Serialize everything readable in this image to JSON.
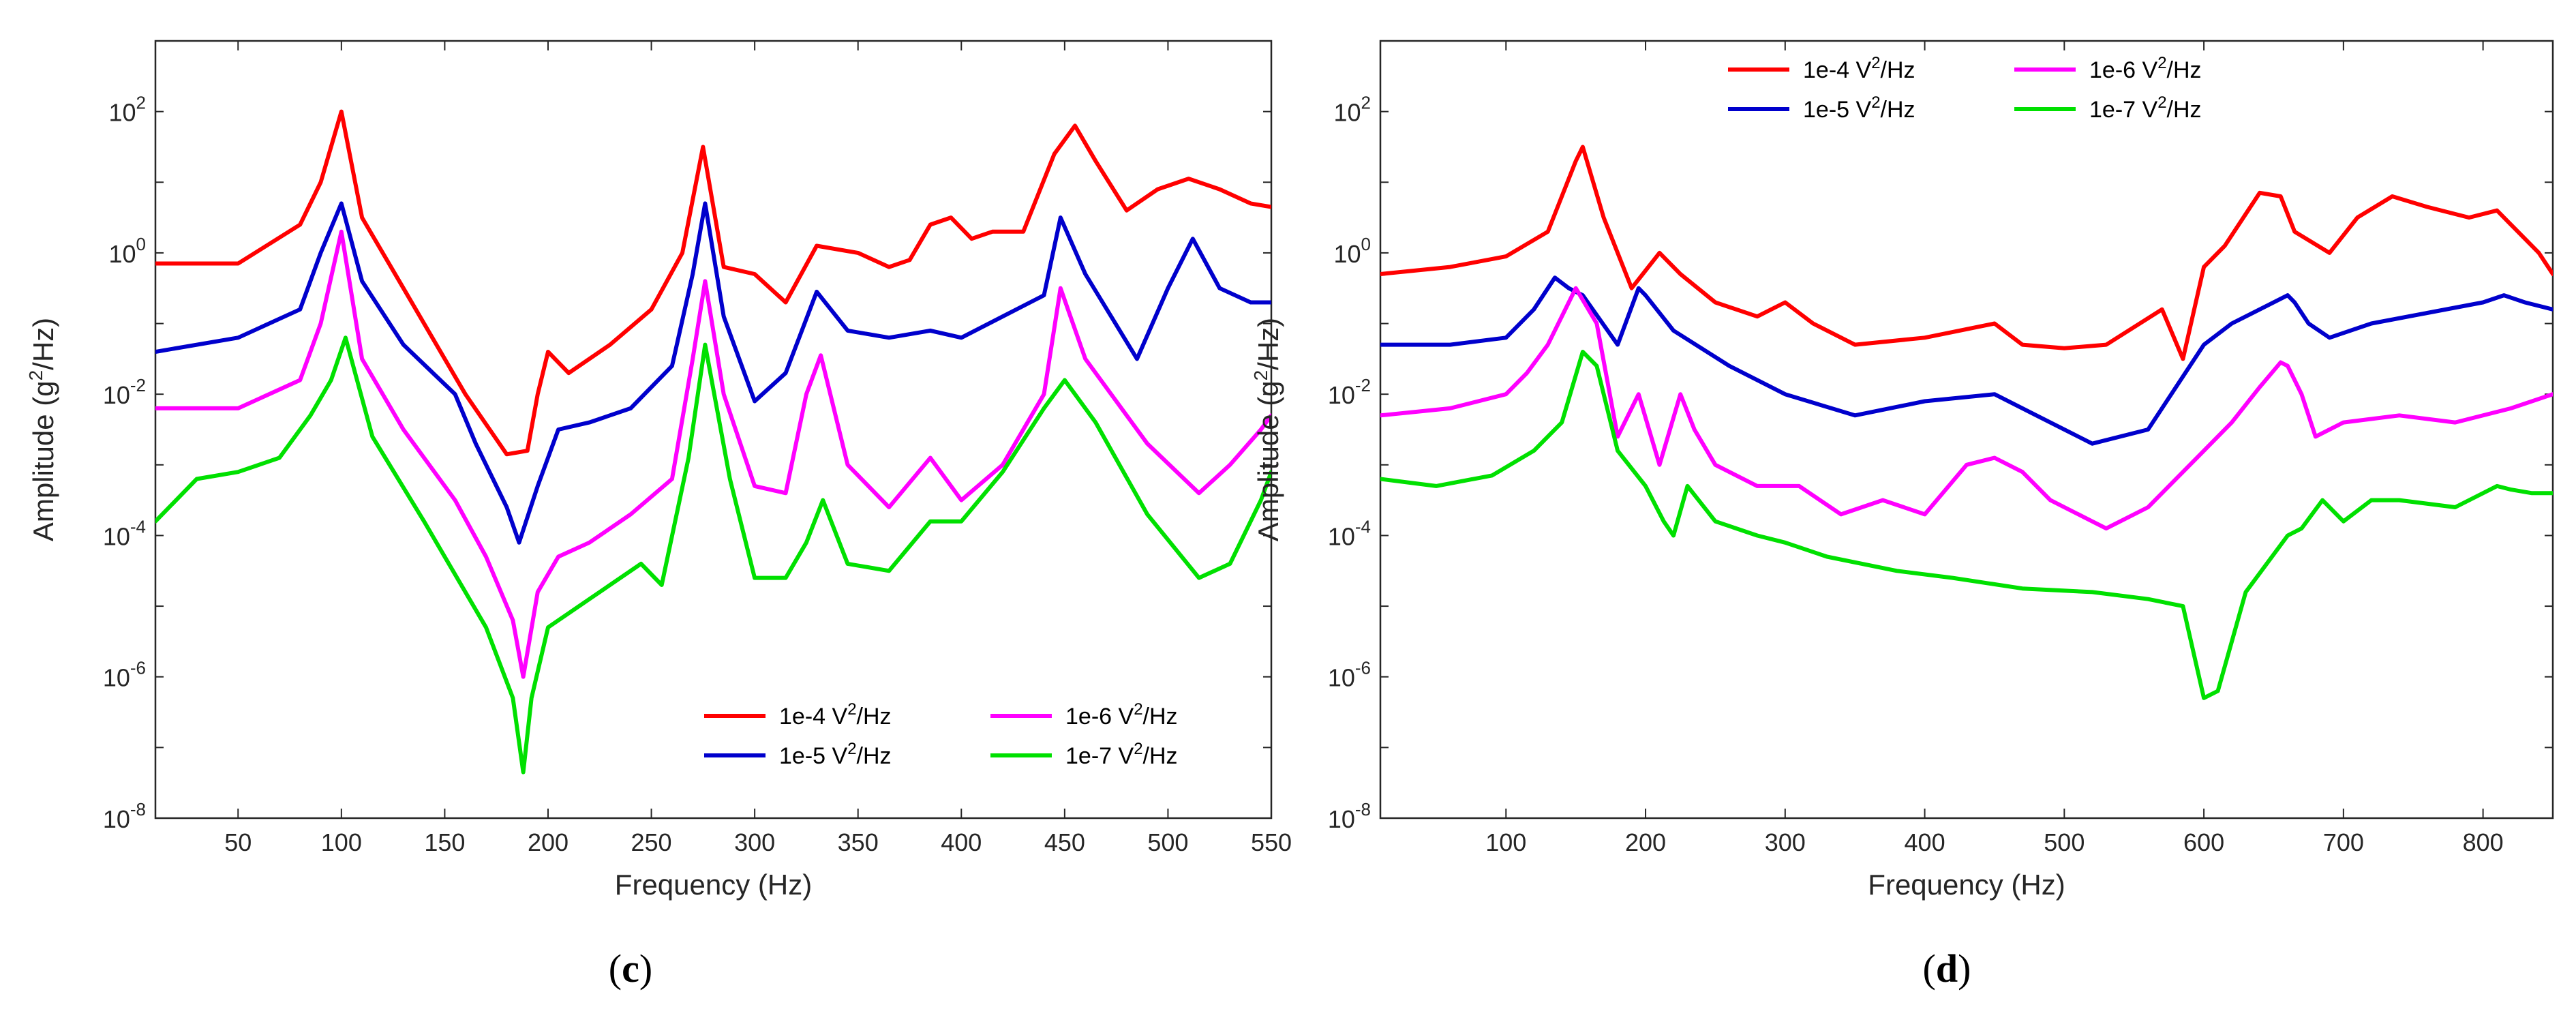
{
  "colors": {
    "series": [
      "#ff0000",
      "#0000cc",
      "#ff00ff",
      "#00e000"
    ],
    "axis": "#262626"
  },
  "chart_data": [
    {
      "type": "line",
      "xlabel": "Frequency (Hz)",
      "ylabel": "Amplitude (g²/Hz)",
      "ylabel_text": {
        "main": "Amplitude (g",
        "sup": "2",
        "tail": "/Hz)"
      },
      "xlim": [
        10,
        550
      ],
      "ylim_log10": [
        -8,
        3
      ],
      "yscale": "log",
      "xticks": [
        50,
        100,
        150,
        200,
        250,
        300,
        350,
        400,
        450,
        500,
        550
      ],
      "yticks_exp": [
        -8,
        -6,
        -4,
        -2,
        0,
        2
      ],
      "ytick_base": "10",
      "legend_position": "lower-right",
      "caption": {
        "open": "(",
        "letter": "c",
        "close": ")"
      },
      "legend": [
        {
          "base": "1e-4 V",
          "sup": "2",
          "tail": "/Hz"
        },
        {
          "base": "1e-5 V",
          "sup": "2",
          "tail": "/Hz"
        },
        {
          "base": "1e-6 V",
          "sup": "2",
          "tail": "/Hz"
        },
        {
          "base": "1e-7 V",
          "sup": "2",
          "tail": "/Hz"
        }
      ],
      "series": [
        {
          "name": "1e-4 V2/Hz",
          "x": [
            10,
            50,
            80,
            90,
            100,
            110,
            130,
            160,
            180,
            190,
            195,
            200,
            210,
            230,
            250,
            265,
            275,
            285,
            300,
            315,
            330,
            350,
            365,
            375,
            385,
            395,
            405,
            415,
            430,
            445,
            455,
            465,
            480,
            495,
            510,
            525,
            540,
            550
          ],
          "y": [
            -0.15,
            -0.15,
            0.4,
            1.0,
            2.0,
            0.5,
            -0.5,
            -2.0,
            -2.85,
            -2.8,
            -2.0,
            -1.4,
            -1.7,
            -1.3,
            -0.8,
            0.0,
            1.5,
            -0.2,
            -0.3,
            -0.7,
            0.1,
            0.0,
            -0.2,
            -0.1,
            0.4,
            0.5,
            0.2,
            0.3,
            0.3,
            1.4,
            1.8,
            1.3,
            0.6,
            0.9,
            1.05,
            0.9,
            0.7,
            0.65
          ]
        },
        {
          "name": "1e-5 V2/Hz",
          "x": [
            10,
            50,
            80,
            90,
            100,
            110,
            130,
            155,
            165,
            180,
            186,
            195,
            205,
            220,
            240,
            260,
            270,
            276,
            285,
            300,
            315,
            330,
            345,
            365,
            385,
            400,
            420,
            440,
            448,
            460,
            485,
            500,
            512,
            525,
            540,
            550
          ],
          "y": [
            -1.4,
            -1.2,
            -0.8,
            0.0,
            0.7,
            -0.4,
            -1.3,
            -2.0,
            -2.7,
            -3.6,
            -4.1,
            -3.3,
            -2.5,
            -2.4,
            -2.2,
            -1.6,
            -0.3,
            0.7,
            -0.9,
            -2.1,
            -1.7,
            -0.55,
            -1.1,
            -1.2,
            -1.1,
            -1.2,
            -0.9,
            -0.6,
            0.5,
            -0.3,
            -1.5,
            -0.5,
            0.2,
            -0.5,
            -0.7,
            -0.7
          ]
        },
        {
          "name": "1e-6 V2/Hz",
          "x": [
            10,
            50,
            80,
            90,
            100,
            110,
            130,
            155,
            170,
            183,
            188,
            195,
            205,
            220,
            240,
            260,
            270,
            276,
            285,
            300,
            315,
            325,
            332,
            345,
            365,
            385,
            400,
            420,
            440,
            448,
            460,
            490,
            515,
            530,
            545,
            550
          ],
          "y": [
            -2.2,
            -2.2,
            -1.8,
            -1.0,
            0.3,
            -1.5,
            -2.5,
            -3.5,
            -4.3,
            -5.2,
            -6.0,
            -4.8,
            -4.3,
            -4.1,
            -3.7,
            -3.2,
            -1.5,
            -0.4,
            -2.0,
            -3.3,
            -3.4,
            -2.0,
            -1.45,
            -3.0,
            -3.6,
            -2.9,
            -3.5,
            -3.0,
            -2.0,
            -0.5,
            -1.5,
            -2.7,
            -3.4,
            -3.0,
            -2.5,
            -2.3
          ]
        },
        {
          "name": "1e-7 V2/Hz",
          "x": [
            10,
            30,
            50,
            70,
            85,
            95,
            102,
            115,
            140,
            170,
            183,
            188,
            192,
            200,
            220,
            245,
            255,
            268,
            276,
            288,
            300,
            315,
            325,
            333,
            345,
            365,
            385,
            400,
            420,
            440,
            450,
            465,
            490,
            515,
            530,
            545,
            550
          ],
          "y": [
            -3.8,
            -3.2,
            -3.1,
            -2.9,
            -2.3,
            -1.8,
            -1.2,
            -2.6,
            -3.8,
            -5.3,
            -6.3,
            -7.35,
            -6.3,
            -5.3,
            -4.9,
            -4.4,
            -4.7,
            -2.9,
            -1.3,
            -3.2,
            -4.6,
            -4.6,
            -4.1,
            -3.5,
            -4.4,
            -4.5,
            -3.8,
            -3.8,
            -3.1,
            -2.2,
            -1.8,
            -2.4,
            -3.7,
            -4.6,
            -4.4,
            -3.5,
            -3.1
          ]
        }
      ]
    },
    {
      "type": "line",
      "xlabel": "Frequency (Hz)",
      "ylabel": "Amplitude (g²/Hz)",
      "ylabel_text": {
        "main": "Amplitude (g",
        "sup": "2",
        "tail": "/Hz)"
      },
      "xlim": [
        10,
        850
      ],
      "ylim_log10": [
        -8,
        3
      ],
      "yscale": "log",
      "xticks": [
        100,
        200,
        300,
        400,
        500,
        600,
        700,
        800
      ],
      "yticks_exp": [
        -8,
        -6,
        -4,
        -2,
        0,
        2
      ],
      "ytick_base": "10",
      "legend_position": "top",
      "caption": {
        "open": "(",
        "letter": "d",
        "close": ")"
      },
      "legend": [
        {
          "base": "1e-4 V",
          "sup": "2",
          "tail": "/Hz"
        },
        {
          "base": "1e-5 V",
          "sup": "2",
          "tail": "/Hz"
        },
        {
          "base": "1e-6 V",
          "sup": "2",
          "tail": "/Hz"
        },
        {
          "base": "1e-7 V",
          "sup": "2",
          "tail": "/Hz"
        }
      ],
      "series": [
        {
          "name": "1e-4 V2/Hz",
          "x": [
            10,
            60,
            100,
            130,
            150,
            155,
            170,
            190,
            210,
            225,
            250,
            280,
            300,
            320,
            350,
            400,
            450,
            470,
            500,
            530,
            570,
            585,
            600,
            615,
            640,
            655,
            665,
            690,
            710,
            735,
            760,
            790,
            810,
            820,
            840,
            850
          ],
          "y": [
            -0.3,
            -0.2,
            -0.05,
            0.3,
            1.3,
            1.5,
            0.5,
            -0.5,
            0.0,
            -0.3,
            -0.7,
            -0.9,
            -0.7,
            -1.0,
            -1.3,
            -1.2,
            -1.0,
            -1.3,
            -1.35,
            -1.3,
            -0.8,
            -1.5,
            -0.2,
            0.1,
            0.85,
            0.8,
            0.3,
            0.0,
            0.5,
            0.8,
            0.65,
            0.5,
            0.6,
            0.4,
            0.0,
            -0.3
          ]
        },
        {
          "name": "1e-5 V2/Hz",
          "x": [
            10,
            60,
            100,
            120,
            135,
            145,
            155,
            180,
            195,
            200,
            220,
            260,
            300,
            350,
            400,
            450,
            480,
            520,
            560,
            600,
            620,
            640,
            660,
            665,
            675,
            690,
            720,
            760,
            800,
            815,
            830,
            850
          ],
          "y": [
            -1.3,
            -1.3,
            -1.2,
            -0.8,
            -0.35,
            -0.5,
            -0.6,
            -1.3,
            -0.5,
            -0.6,
            -1.1,
            -1.6,
            -2.0,
            -2.3,
            -2.1,
            -2.0,
            -2.3,
            -2.7,
            -2.5,
            -1.3,
            -1.0,
            -0.8,
            -0.6,
            -0.7,
            -1.0,
            -1.2,
            -1.0,
            -0.85,
            -0.7,
            -0.6,
            -0.7,
            -0.8
          ]
        },
        {
          "name": "1e-6 V2/Hz",
          "x": [
            10,
            60,
            100,
            115,
            130,
            145,
            150,
            165,
            180,
            195,
            210,
            225,
            235,
            250,
            280,
            310,
            340,
            370,
            400,
            430,
            450,
            470,
            490,
            530,
            560,
            600,
            620,
            640,
            655,
            660,
            670,
            680,
            700,
            740,
            780,
            820,
            850
          ],
          "y": [
            -2.3,
            -2.2,
            -2.0,
            -1.7,
            -1.3,
            -0.7,
            -0.5,
            -1.0,
            -2.6,
            -2.0,
            -3.0,
            -2.0,
            -2.5,
            -3.0,
            -3.3,
            -3.3,
            -3.7,
            -3.5,
            -3.7,
            -3.0,
            -2.9,
            -3.1,
            -3.5,
            -3.9,
            -3.6,
            -2.8,
            -2.4,
            -1.9,
            -1.55,
            -1.6,
            -2.0,
            -2.6,
            -2.4,
            -2.3,
            -2.4,
            -2.2,
            -2.0
          ]
        },
        {
          "name": "1e-7 V2/Hz",
          "x": [
            10,
            50,
            90,
            120,
            140,
            155,
            165,
            180,
            200,
            213,
            220,
            230,
            250,
            280,
            300,
            330,
            380,
            420,
            470,
            520,
            560,
            585,
            600,
            610,
            630,
            660,
            670,
            685,
            700,
            720,
            740,
            780,
            810,
            820,
            835,
            850
          ],
          "y": [
            -3.2,
            -3.3,
            -3.15,
            -2.8,
            -2.4,
            -1.4,
            -1.6,
            -2.8,
            -3.3,
            -3.8,
            -4.0,
            -3.3,
            -3.8,
            -4.0,
            -4.1,
            -4.3,
            -4.5,
            -4.6,
            -4.75,
            -4.8,
            -4.9,
            -5.0,
            -6.3,
            -6.2,
            -4.8,
            -4.0,
            -3.9,
            -3.5,
            -3.8,
            -3.5,
            -3.5,
            -3.6,
            -3.3,
            -3.35,
            -3.4,
            -3.4
          ]
        }
      ]
    }
  ]
}
